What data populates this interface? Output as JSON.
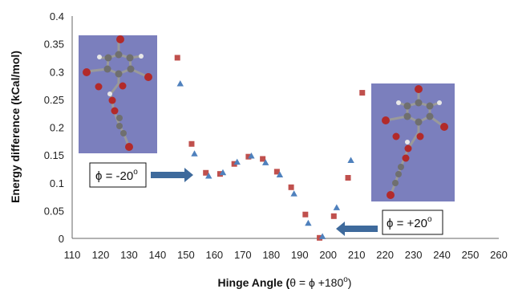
{
  "chart_data": {
    "type": "scatter",
    "xlabel": {
      "prefix": "Hinge Angle (",
      "symbol": "θ = ϕ +180",
      "sup": "o",
      "suffix": ")"
    },
    "ylabel": "Energy difference (kCal/mol)",
    "xlim": [
      110,
      260
    ],
    "ylim": [
      0,
      0.4
    ],
    "xticks": [
      110,
      120,
      130,
      140,
      150,
      160,
      170,
      180,
      190,
      200,
      210,
      220,
      230,
      240,
      250,
      260
    ],
    "yticks": [
      0,
      0.05,
      0.1,
      0.15,
      0.2,
      0.25,
      0.3,
      0.35,
      0.4
    ],
    "ytick_labels": [
      "0",
      "0.05",
      "0.1",
      "0.15",
      "0.2",
      "0.25",
      "0.3",
      "0.35",
      "0.4"
    ],
    "grid": false,
    "series": [
      {
        "marker": "square",
        "color": "#c0504d",
        "x": [
          147,
          152,
          157,
          162,
          167,
          172,
          177,
          182,
          187,
          192,
          197,
          202,
          207,
          212
        ],
        "y": [
          0.325,
          0.17,
          0.118,
          0.116,
          0.134,
          0.147,
          0.143,
          0.12,
          0.092,
          0.043,
          0.001,
          0.04,
          0.109,
          0.262
        ]
      },
      {
        "marker": "triangle",
        "color": "#4f81bd",
        "x": [
          148,
          153,
          158,
          163,
          168,
          173,
          178,
          183,
          188,
          193,
          198,
          203,
          208
        ],
        "y": [
          0.278,
          0.152,
          0.112,
          0.118,
          0.137,
          0.148,
          0.136,
          0.114,
          0.08,
          0.027,
          0.003,
          0.055,
          0.14
        ]
      }
    ],
    "annotations": [
      {
        "text": "ϕ = -20",
        "sup": "o",
        "arrow": "right"
      },
      {
        "text": "ϕ = +20",
        "sup": "o",
        "arrow": "left"
      }
    ],
    "insets": [
      {
        "name": "molecule-phi-minus-20",
        "background": "#7b7fbd"
      },
      {
        "name": "molecule-phi-plus-20",
        "background": "#7b7fbd"
      }
    ]
  }
}
